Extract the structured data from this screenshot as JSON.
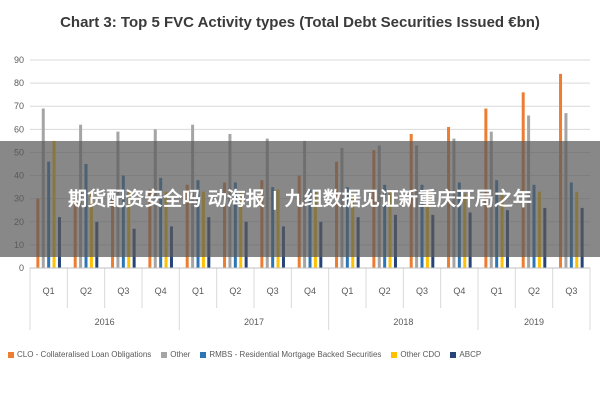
{
  "chart_data": {
    "type": "bar",
    "title": "Chart 3: Top 5 FVC Activity types (Total Debt Securities Issued €bn)",
    "ylim": [
      0,
      90
    ],
    "yticks": [
      0,
      10,
      20,
      30,
      40,
      50,
      60,
      70,
      80,
      90
    ],
    "categories": [
      "Q1",
      "Q2",
      "Q3",
      "Q4",
      "Q1",
      "Q2",
      "Q3",
      "Q4",
      "Q1",
      "Q2",
      "Q3",
      "Q4",
      "Q1",
      "Q2",
      "Q3"
    ],
    "year_groups": [
      {
        "label": "2016",
        "count": 4
      },
      {
        "label": "2017",
        "count": 4
      },
      {
        "label": "2018",
        "count": 4
      },
      {
        "label": "2019",
        "count": 3
      }
    ],
    "series": [
      {
        "name": "CLO - Collateralised Loan Obligations",
        "color": "#ed7d31",
        "values": [
          30,
          32,
          34,
          34,
          36,
          37,
          38,
          40,
          46,
          51,
          58,
          61,
          69,
          76,
          84
        ]
      },
      {
        "name": "Other",
        "color": "#a5a5a5",
        "values": [
          69,
          62,
          59,
          60,
          62,
          58,
          56,
          55,
          52,
          53,
          53,
          56,
          59,
          66,
          67
        ]
      },
      {
        "name": "RMBS - Residential Mortgage Backed Securities",
        "color": "#2e75b6",
        "values": [
          46,
          45,
          40,
          39,
          38,
          37,
          35,
          34,
          35,
          36,
          36,
          37,
          38,
          36,
          37
        ]
      },
      {
        "name": "Other CDO",
        "color": "#ffc000",
        "values": [
          55,
          33,
          33,
          33,
          33,
          33,
          34,
          33,
          32,
          33,
          33,
          32,
          32,
          33,
          33
        ]
      },
      {
        "name": "ABCP",
        "color": "#264478",
        "values": [
          22,
          20,
          17,
          18,
          22,
          20,
          18,
          20,
          22,
          23,
          23,
          24,
          25,
          26,
          26
        ]
      }
    ],
    "legend_position": "bottom",
    "grid": true
  },
  "overlay": {
    "text": "期货配资安全吗 动海报 | 九组数据见证新重庆开局之年"
  }
}
